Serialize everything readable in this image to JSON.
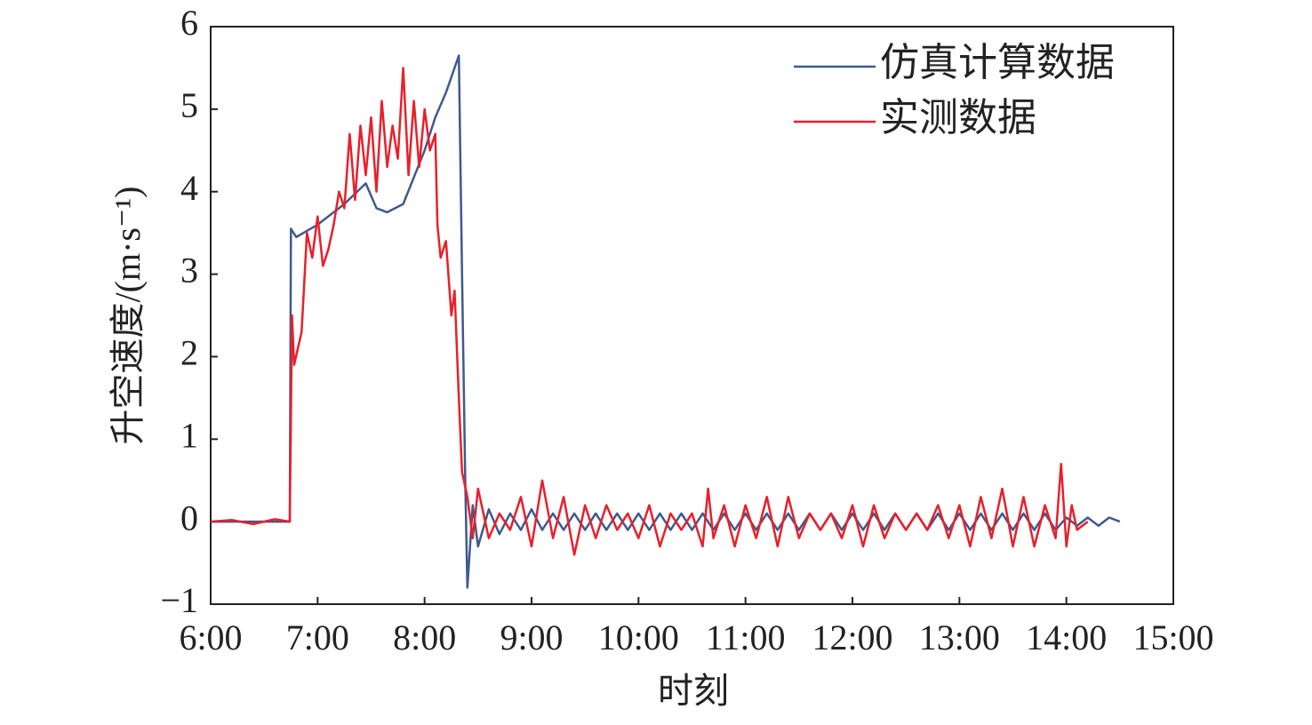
{
  "chart_data": {
    "type": "line",
    "xlabel": "时刻",
    "ylabel": "升空速度/(m·s⁻¹)",
    "xlim": [
      6,
      15
    ],
    "ylim": [
      -1,
      6
    ],
    "xticks": [
      {
        "value": 6,
        "label": "6:00"
      },
      {
        "value": 7,
        "label": "7:00"
      },
      {
        "value": 8,
        "label": "8:00"
      },
      {
        "value": 9,
        "label": "9:00"
      },
      {
        "value": 10,
        "label": "10:00"
      },
      {
        "value": 11,
        "label": "11:00"
      },
      {
        "value": 12,
        "label": "12:00"
      },
      {
        "value": 13,
        "label": "13:00"
      },
      {
        "value": 14,
        "label": "14:00"
      },
      {
        "value": 15,
        "label": "15:00"
      }
    ],
    "yticks": [
      {
        "value": -1,
        "label": "−1"
      },
      0,
      1,
      2,
      3,
      4,
      5,
      6
    ],
    "legend": "upper right",
    "series": [
      {
        "name": "仿真计算数据",
        "color": "#3f5a8e",
        "x": [
          6.0,
          6.5,
          6.74,
          6.75,
          6.8,
          7.0,
          7.25,
          7.45,
          7.55,
          7.65,
          7.8,
          8.0,
          8.1,
          8.2,
          8.32,
          8.35,
          8.38,
          8.4,
          8.45,
          8.5,
          8.6,
          8.7,
          8.8,
          8.9,
          9.0,
          9.1,
          9.2,
          9.3,
          9.4,
          9.5,
          9.6,
          9.7,
          9.8,
          9.9,
          10.0,
          10.1,
          10.2,
          10.3,
          10.4,
          10.5,
          10.6,
          10.7,
          10.8,
          10.9,
          11.0,
          11.1,
          11.2,
          11.3,
          11.4,
          11.5,
          11.6,
          11.7,
          11.8,
          11.9,
          12.0,
          12.1,
          12.2,
          12.3,
          12.4,
          12.5,
          12.6,
          12.7,
          12.8,
          12.9,
          13.0,
          13.1,
          13.2,
          13.3,
          13.4,
          13.5,
          13.6,
          13.7,
          13.8,
          13.9,
          14.0,
          14.1,
          14.2,
          14.3,
          14.4,
          14.5
        ],
        "values": [
          0,
          0,
          0,
          3.55,
          3.45,
          3.6,
          3.85,
          4.1,
          3.8,
          3.75,
          3.85,
          4.5,
          4.9,
          5.2,
          5.65,
          3.0,
          0.5,
          -0.8,
          0.2,
          -0.3,
          0.15,
          -0.15,
          0.1,
          -0.1,
          0.15,
          -0.1,
          0.1,
          -0.1,
          0.1,
          -0.1,
          0.1,
          -0.1,
          0.1,
          -0.1,
          0.1,
          -0.1,
          0.1,
          -0.1,
          0.1,
          -0.1,
          0.1,
          -0.1,
          0.1,
          -0.1,
          0.1,
          -0.1,
          0.1,
          -0.1,
          0.1,
          -0.1,
          0.1,
          -0.1,
          0.1,
          -0.1,
          0.1,
          -0.1,
          0.1,
          -0.1,
          0.1,
          -0.1,
          0.1,
          -0.1,
          0.1,
          -0.1,
          0.1,
          -0.1,
          0.1,
          -0.1,
          0.1,
          -0.1,
          0.1,
          -0.1,
          0.1,
          -0.1,
          0.05,
          -0.05,
          0.05,
          -0.05,
          0.05,
          0
        ]
      },
      {
        "name": "实测数据",
        "color": "#e8202a",
        "x": [
          6.0,
          6.2,
          6.4,
          6.6,
          6.74,
          6.76,
          6.78,
          6.85,
          6.9,
          6.95,
          7.0,
          7.05,
          7.1,
          7.15,
          7.2,
          7.25,
          7.3,
          7.35,
          7.4,
          7.45,
          7.5,
          7.55,
          7.6,
          7.65,
          7.7,
          7.75,
          7.8,
          7.85,
          7.9,
          7.95,
          8.0,
          8.05,
          8.1,
          8.12,
          8.15,
          8.2,
          8.25,
          8.28,
          8.32,
          8.35,
          8.4,
          8.45,
          8.5,
          8.6,
          8.7,
          8.8,
          8.9,
          9.0,
          9.1,
          9.2,
          9.3,
          9.4,
          9.5,
          9.6,
          9.7,
          9.8,
          9.9,
          10.0,
          10.1,
          10.2,
          10.3,
          10.4,
          10.5,
          10.6,
          10.65,
          10.7,
          10.8,
          10.9,
          11.0,
          11.1,
          11.2,
          11.3,
          11.4,
          11.5,
          11.6,
          11.7,
          11.8,
          11.9,
          12.0,
          12.1,
          12.2,
          12.3,
          12.4,
          12.5,
          12.6,
          12.7,
          12.8,
          12.9,
          13.0,
          13.1,
          13.2,
          13.3,
          13.4,
          13.5,
          13.6,
          13.7,
          13.8,
          13.9,
          13.95,
          14.0,
          14.05,
          14.1,
          14.2
        ],
        "values": [
          0,
          0.02,
          -0.03,
          0.03,
          0,
          2.5,
          1.9,
          2.3,
          3.5,
          3.2,
          3.7,
          3.1,
          3.3,
          3.6,
          4.0,
          3.8,
          4.7,
          3.9,
          4.8,
          4.2,
          4.9,
          4.0,
          5.1,
          4.3,
          4.8,
          4.4,
          5.5,
          4.2,
          5.1,
          4.3,
          5.0,
          4.5,
          4.7,
          3.6,
          3.2,
          3.4,
          2.5,
          2.8,
          1.5,
          0.6,
          0.3,
          -0.2,
          0.4,
          -0.2,
          0.1,
          -0.1,
          0.3,
          -0.3,
          0.5,
          -0.2,
          0.3,
          -0.4,
          0.2,
          -0.2,
          0.2,
          -0.1,
          0.1,
          -0.2,
          0.2,
          -0.3,
          0.1,
          -0.1,
          0.1,
          -0.3,
          0.4,
          -0.2,
          0.2,
          -0.3,
          0.2,
          -0.2,
          0.3,
          -0.3,
          0.3,
          -0.2,
          0.1,
          -0.1,
          0.1,
          -0.2,
          0.2,
          -0.3,
          0.2,
          -0.2,
          0.1,
          -0.1,
          0.1,
          -0.1,
          0.2,
          -0.2,
          0.2,
          -0.3,
          0.3,
          -0.2,
          0.4,
          -0.3,
          0.3,
          -0.3,
          0.2,
          -0.2,
          0.7,
          -0.3,
          0.2,
          -0.1,
          0
        ]
      }
    ]
  }
}
